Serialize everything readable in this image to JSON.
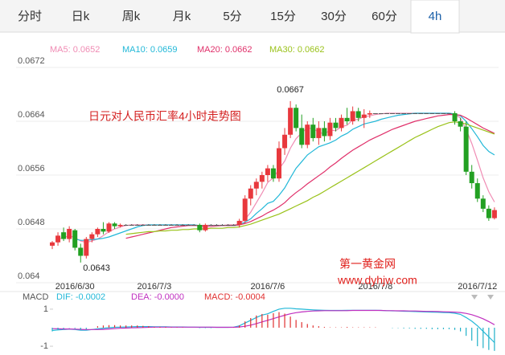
{
  "tabs": [
    "分时",
    "日k",
    "周k",
    "月k",
    "5分",
    "15分",
    "30分",
    "60分",
    "4h"
  ],
  "active_tab": 8,
  "chart_data": [
    {
      "type": "candlestick",
      "title": "日元对人民币汇率4小时走势图",
      "watermark": [
        "第一黄金网",
        "www.dyhjw.com"
      ],
      "annotations": [
        {
          "text": "0.0667",
          "value": 0.0667,
          "at": "high"
        },
        {
          "text": "0.0643",
          "value": 0.0643,
          "at": "low"
        }
      ],
      "categories": [
        null,
        null,
        null,
        null,
        "2016/6/30",
        null,
        null,
        null,
        null,
        null,
        null,
        null,
        null,
        null,
        null,
        null,
        null,
        null,
        "2016/7/3",
        null,
        null,
        null,
        null,
        null,
        null,
        null,
        null,
        null,
        null,
        null,
        null,
        null,
        null,
        null,
        null,
        null,
        null,
        null,
        "2016/7/6",
        null,
        null,
        null,
        null,
        null,
        null,
        null,
        null,
        null,
        null,
        null,
        null,
        null,
        null,
        null,
        null,
        null,
        null,
        "2016/7/8",
        null,
        null,
        null,
        null,
        null,
        null,
        null,
        null,
        null,
        null,
        null,
        null,
        null,
        null,
        null,
        null,
        null,
        "2016/7/12",
        null,
        null,
        null
      ],
      "open": [
        0.06455,
        0.0646,
        0.06475,
        0.06465,
        0.06478,
        0.06452,
        0.0644,
        0.06465,
        0.06472,
        0.0648,
        0.06476,
        0.06488,
        0.06484,
        0.06486,
        0.06486,
        0.06486,
        0.06486,
        0.06486,
        0.06486,
        0.06486,
        0.06486,
        0.06486,
        0.06486,
        0.06486,
        0.06486,
        0.06486,
        0.06486,
        0.06478,
        0.06486,
        0.06486,
        0.06486,
        0.06486,
        0.06486,
        0.06486,
        0.06492,
        0.06525,
        0.0654,
        0.0655,
        0.0656,
        0.0657,
        0.06555,
        0.066,
        0.0662,
        0.0666,
        0.0663,
        0.06605,
        0.06635,
        0.06615,
        0.0663,
        0.06618,
        0.06638,
        0.0663,
        0.06645,
        0.0664,
        0.06655,
        0.06645,
        0.0665,
        0.06652,
        0.06652,
        0.06652,
        0.06652,
        0.06652,
        0.06652,
        0.06652,
        0.06652,
        0.06652,
        0.06652,
        0.06652,
        0.06652,
        0.06652,
        0.06652,
        0.06652,
        0.0664,
        0.06632,
        0.06565,
        0.06548,
        0.06525,
        0.0651,
        0.06496
      ],
      "high": [
        0.06462,
        0.06475,
        0.06482,
        0.06484,
        0.0648,
        0.06458,
        0.06468,
        0.06475,
        0.06482,
        0.0649,
        0.0649,
        0.0649,
        0.06488,
        0.06487,
        0.06487,
        0.06487,
        0.06487,
        0.06487,
        0.06487,
        0.06487,
        0.06487,
        0.06487,
        0.06487,
        0.06487,
        0.06487,
        0.06487,
        0.06488,
        0.06488,
        0.06487,
        0.06487,
        0.06487,
        0.06487,
        0.06487,
        0.06495,
        0.0653,
        0.06545,
        0.06555,
        0.06565,
        0.06575,
        0.06575,
        0.0661,
        0.0663,
        0.0667,
        0.06665,
        0.0665,
        0.0664,
        0.06645,
        0.0664,
        0.0664,
        0.06645,
        0.06645,
        0.0665,
        0.0666,
        0.06662,
        0.0666,
        0.06658,
        0.06656,
        0.06652,
        0.06652,
        0.06652,
        0.06652,
        0.06652,
        0.06652,
        0.06652,
        0.06652,
        0.06652,
        0.06652,
        0.06652,
        0.06652,
        0.06652,
        0.06652,
        0.06655,
        0.06645,
        0.0664,
        0.06575,
        0.06555,
        0.0653,
        0.06515,
        0.06512
      ],
      "low": [
        0.0645,
        0.06455,
        0.06462,
        0.0646,
        0.06448,
        0.0643,
        0.06436,
        0.0646,
        0.06468,
        0.06472,
        0.06474,
        0.0648,
        0.06482,
        0.06485,
        0.06485,
        0.06485,
        0.06485,
        0.06485,
        0.06485,
        0.06485,
        0.06485,
        0.06485,
        0.06485,
        0.06485,
        0.06485,
        0.06485,
        0.06475,
        0.06476,
        0.06485,
        0.06485,
        0.06485,
        0.06485,
        0.06485,
        0.06482,
        0.06488,
        0.06515,
        0.0653,
        0.0654,
        0.0655,
        0.0655,
        0.0655,
        0.0659,
        0.06615,
        0.06625,
        0.066,
        0.066,
        0.0661,
        0.06605,
        0.0661,
        0.06612,
        0.06625,
        0.06625,
        0.06635,
        0.06635,
        0.0664,
        0.0663,
        0.06645,
        0.06652,
        0.06652,
        0.06652,
        0.06652,
        0.06652,
        0.06652,
        0.06652,
        0.06652,
        0.06652,
        0.06652,
        0.06652,
        0.06652,
        0.06652,
        0.06652,
        0.06635,
        0.06625,
        0.0656,
        0.0654,
        0.0652,
        0.06505,
        0.06492,
        0.06494
      ],
      "close": [
        0.0646,
        0.0647,
        0.06465,
        0.0648,
        0.06452,
        0.0644,
        0.06465,
        0.06472,
        0.0648,
        0.06476,
        0.06488,
        0.06484,
        0.06486,
        0.06486,
        0.06486,
        0.06486,
        0.06486,
        0.06486,
        0.06486,
        0.06486,
        0.06486,
        0.06486,
        0.06486,
        0.06486,
        0.06486,
        0.06486,
        0.06478,
        0.06486,
        0.06486,
        0.06486,
        0.06486,
        0.06486,
        0.06486,
        0.06492,
        0.06525,
        0.0654,
        0.0655,
        0.0656,
        0.0657,
        0.06555,
        0.066,
        0.0662,
        0.0666,
        0.0663,
        0.06605,
        0.06635,
        0.06615,
        0.0663,
        0.06618,
        0.06638,
        0.0663,
        0.06645,
        0.0664,
        0.06655,
        0.06645,
        0.0665,
        0.06652,
        0.06652,
        0.06652,
        0.06652,
        0.06652,
        0.06652,
        0.06652,
        0.06652,
        0.06652,
        0.06652,
        0.06652,
        0.06652,
        0.06652,
        0.06652,
        0.06652,
        0.0664,
        0.06632,
        0.06565,
        0.06548,
        0.06525,
        0.0651,
        0.06496,
        0.06508
      ],
      "colors": {
        "up": "#e8383d",
        "down": "#22a022",
        "flat": "#555555"
      },
      "series": [
        {
          "name": "MA5: 0.0652",
          "color": "#f08cb4",
          "values": [
            null,
            0.06465,
            0.06467,
            0.0647,
            0.06467,
            0.06462,
            0.0646,
            0.06462,
            0.06465,
            0.0647,
            0.06476,
            0.0648,
            0.06483,
            0.06485,
            0.06486,
            0.06486,
            0.06486,
            0.06486,
            0.06486,
            0.06486,
            0.06486,
            0.06486,
            0.06486,
            0.06486,
            0.06486,
            0.06486,
            0.06484,
            0.06483,
            0.06483,
            0.06484,
            0.06485,
            0.06486,
            0.06486,
            0.06487,
            0.06494,
            0.06505,
            0.06519,
            0.06533,
            0.06549,
            0.06556,
            0.06569,
            0.06581,
            0.066,
            0.06614,
            0.06623,
            0.0663,
            0.06629,
            0.06624,
            0.06621,
            0.06627,
            0.06626,
            0.06632,
            0.06634,
            0.06642,
            0.06643,
            0.06647,
            0.06648,
            0.0665,
            0.06651,
            0.06652,
            0.06652,
            0.06652,
            0.06652,
            0.06652,
            0.06652,
            0.06652,
            0.06652,
            0.06652,
            0.06652,
            0.06652,
            0.06652,
            0.0665,
            0.06645,
            0.06628,
            0.06607,
            0.06582,
            0.06556,
            0.06535,
            0.0652
          ]
        },
        {
          "name": "MA10: 0.0659",
          "color": "#22b8d8",
          "values": [
            null,
            null,
            null,
            null,
            0.06465,
            0.06463,
            0.06463,
            0.06464,
            0.06465,
            0.06466,
            0.06468,
            0.06471,
            0.06474,
            0.06477,
            0.0648,
            0.06483,
            0.06485,
            0.06486,
            0.06486,
            0.06486,
            0.06486,
            0.06486,
            0.06486,
            0.06486,
            0.06486,
            0.06486,
            0.06485,
            0.06485,
            0.06485,
            0.06485,
            0.06485,
            0.06485,
            0.06485,
            0.06486,
            0.0649,
            0.06495,
            0.06503,
            0.0651,
            0.06518,
            0.06521,
            0.0653,
            0.06541,
            0.06556,
            0.0657,
            0.0658,
            0.0659,
            0.06596,
            0.06602,
            0.06605,
            0.06608,
            0.06612,
            0.06618,
            0.06622,
            0.06628,
            0.06632,
            0.06636,
            0.06638,
            0.0664,
            0.06643,
            0.06645,
            0.06647,
            0.06649,
            0.0665,
            0.06651,
            0.06652,
            0.06652,
            0.06652,
            0.06652,
            0.06652,
            0.06652,
            0.06652,
            0.06651,
            0.06648,
            0.0664,
            0.06629,
            0.06617,
            0.06604,
            0.06595,
            0.0659
          ]
        },
        {
          "name": "MA20: 0.0662",
          "color": "#e0306a",
          "values": [
            null,
            null,
            null,
            null,
            null,
            null,
            null,
            null,
            null,
            null,
            null,
            null,
            null,
            0.06466,
            0.06468,
            0.0647,
            0.06472,
            0.06474,
            0.06476,
            0.06478,
            0.0648,
            0.06482,
            0.06483,
            0.06484,
            0.06485,
            0.06485,
            0.06485,
            0.06485,
            0.06485,
            0.06485,
            0.06485,
            0.06485,
            0.06485,
            0.06486,
            0.06488,
            0.06491,
            0.06495,
            0.06499,
            0.06504,
            0.06508,
            0.06513,
            0.06519,
            0.06527,
            0.06534,
            0.0654,
            0.06547,
            0.06553,
            0.06559,
            0.06565,
            0.06572,
            0.06578,
            0.06585,
            0.06591,
            0.06597,
            0.06602,
            0.06607,
            0.06612,
            0.06616,
            0.0662,
            0.06624,
            0.06628,
            0.06631,
            0.06634,
            0.06637,
            0.0664,
            0.06642,
            0.06644,
            0.06646,
            0.06648,
            0.06649,
            0.0665,
            0.0665,
            0.06649,
            0.06645,
            0.0664,
            0.06635,
            0.0663,
            0.06626,
            0.06622
          ]
        },
        {
          "name": "MA30: 0.0662",
          "color": "#9ac21a",
          "values": [
            null,
            null,
            null,
            null,
            null,
            null,
            null,
            null,
            null,
            null,
            null,
            null,
            null,
            0.06472,
            0.06473,
            0.06474,
            0.06475,
            0.06476,
            0.06476,
            0.06477,
            0.06477,
            0.06478,
            0.06478,
            0.06479,
            0.06479,
            0.0648,
            0.0648,
            0.0648,
            0.06481,
            0.06481,
            0.06481,
            0.06482,
            0.06482,
            0.06483,
            0.06485,
            0.06487,
            0.0649,
            0.06493,
            0.06496,
            0.06499,
            0.06502,
            0.06506,
            0.0651,
            0.06514,
            0.06518,
            0.06522,
            0.06527,
            0.06531,
            0.06536,
            0.06541,
            0.06546,
            0.06551,
            0.06556,
            0.06561,
            0.06566,
            0.06571,
            0.06576,
            0.06581,
            0.06586,
            0.06591,
            0.06596,
            0.06601,
            0.06606,
            0.06611,
            0.06616,
            0.0662,
            0.06624,
            0.06628,
            0.06632,
            0.06635,
            0.06638,
            0.06639,
            0.06638,
            0.06636,
            0.06633,
            0.0663,
            0.06627,
            0.06624,
            0.06621
          ]
        }
      ],
      "ylim": [
        0.064,
        0.0672
      ],
      "yticks": [
        0.0672,
        0.0664,
        0.0656,
        0.0648,
        0.064
      ],
      "grid": true
    },
    {
      "type": "macd",
      "title": "MACD",
      "ylim": [
        -1.3,
        1.3
      ],
      "yticks": [
        1,
        -1
      ],
      "series": [
        {
          "name": "DIF: -0.0002",
          "color": "#22b8d8",
          "values": [
            -0.15,
            -0.12,
            -0.1,
            -0.08,
            -0.1,
            -0.14,
            -0.14,
            -0.1,
            -0.06,
            -0.03,
            0,
            0.02,
            0.03,
            0.04,
            0.05,
            0.06,
            0.06,
            0.06,
            0.05,
            0.05,
            0.05,
            0.04,
            0.04,
            0.04,
            0.03,
            0.03,
            0.02,
            0.02,
            0.02,
            0.02,
            0.02,
            0.02,
            0.03,
            0.1,
            0.25,
            0.4,
            0.55,
            0.68,
            0.75,
            0.88,
            1,
            1.05,
            1.05,
            1.02,
            1,
            0.98,
            0.96,
            0.95,
            0.94,
            0.93,
            0.93,
            0.93,
            0.94,
            0.94,
            0.94,
            0.94,
            0.94,
            0.94,
            0.93,
            0.92,
            0.91,
            0.9,
            0.89,
            0.88,
            0.87,
            0.86,
            0.85,
            0.84,
            0.83,
            0.82,
            0.81,
            0.78,
            0.72,
            0.55,
            0.35,
            0.1,
            -0.2,
            -0.5,
            -0.8
          ]
        },
        {
          "name": "DEA: -0.0000",
          "color": "#c030c0",
          "values": [
            -0.05,
            -0.06,
            -0.07,
            -0.07,
            -0.08,
            -0.09,
            -0.1,
            -0.1,
            -0.1,
            -0.09,
            -0.07,
            -0.05,
            -0.03,
            -0.02,
            -0.01,
            0,
            0.01,
            0.02,
            0.03,
            0.03,
            0.03,
            0.03,
            0.03,
            0.03,
            0.03,
            0.03,
            0.03,
            0.03,
            0.03,
            0.02,
            0.02,
            0.02,
            0.02,
            0.04,
            0.08,
            0.14,
            0.22,
            0.31,
            0.4,
            0.49,
            0.58,
            0.67,
            0.75,
            0.81,
            0.85,
            0.88,
            0.9,
            0.91,
            0.92,
            0.92,
            0.92,
            0.92,
            0.92,
            0.93,
            0.93,
            0.93,
            0.93,
            0.93,
            0.93,
            0.92,
            0.92,
            0.91,
            0.91,
            0.9,
            0.9,
            0.89,
            0.88,
            0.88,
            0.87,
            0.86,
            0.85,
            0.84,
            0.82,
            0.77,
            0.7,
            0.6,
            0.48,
            0.33,
            0.16
          ]
        },
        {
          "name": "MACD: -0.0004",
          "color": "#e03030",
          "negative_color": "#20b0c8",
          "bars": true,
          "values": [
            -0.2,
            -0.12,
            -0.06,
            -0.02,
            -0.04,
            -0.1,
            -0.08,
            0,
            0.08,
            0.12,
            0.14,
            0.14,
            0.12,
            0.12,
            0.12,
            0.12,
            0.1,
            0.08,
            0.04,
            0.04,
            0.04,
            0.02,
            0.02,
            0.02,
            0,
            0,
            -0.02,
            -0.02,
            -0.02,
            0,
            0,
            0,
            0.02,
            0.12,
            0.34,
            0.52,
            0.66,
            0.74,
            0.7,
            0.78,
            0.84,
            0.76,
            0.6,
            0.42,
            0.3,
            0.2,
            0.12,
            0.08,
            0.04,
            0.02,
            0.02,
            0.02,
            0.04,
            0.02,
            0.02,
            0.02,
            0.02,
            0.02,
            0,
            0,
            -0.02,
            -0.02,
            -0.04,
            -0.04,
            -0.06,
            -0.06,
            -0.06,
            -0.08,
            -0.08,
            -0.08,
            -0.08,
            -0.12,
            -0.2,
            -0.44,
            -0.7,
            -1,
            -1.1,
            -1.2,
            -1.25
          ]
        }
      ]
    }
  ]
}
